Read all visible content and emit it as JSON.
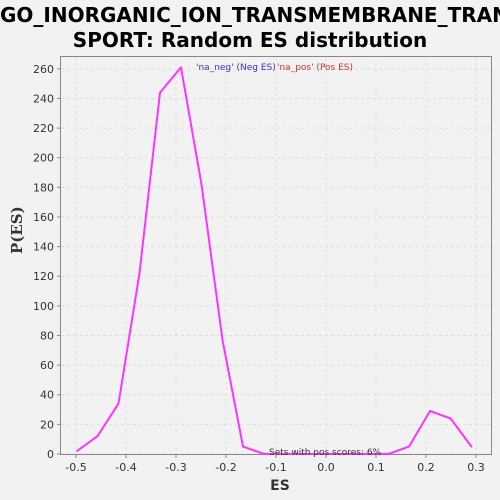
{
  "chart_data": {
    "type": "line",
    "title": "GO_INORGANIC_ION_TRANSMEMBRANE_TRAN\nSPORT: Random ES distribution",
    "xlabel": "ES",
    "ylabel": "P(ES)",
    "xlim": [
      -0.53,
      0.33
    ],
    "ylim": [
      0,
      268
    ],
    "x_ticks": [
      "-0.5",
      "-0.4",
      "-0.3",
      "-0.2",
      "-0.1",
      "0.0",
      "0.1",
      "0.2",
      "0.3"
    ],
    "x_tick_values": [
      -0.5,
      -0.4,
      -0.3,
      -0.2,
      -0.1,
      0.0,
      0.1,
      0.2,
      0.3
    ],
    "y_ticks": [
      "0",
      "20",
      "40",
      "60",
      "80",
      "100",
      "120",
      "140",
      "160",
      "180",
      "200",
      "220",
      "240",
      "260"
    ],
    "y_tick_values": [
      0,
      20,
      40,
      60,
      80,
      100,
      120,
      140,
      160,
      180,
      200,
      220,
      240,
      260
    ],
    "grid": true,
    "legend": [
      {
        "label": "'na_neg' (Neg ES)",
        "color": "#3333cc"
      },
      {
        "label": "'na_pos' (Pos ES)",
        "color": "#cc3333"
      }
    ],
    "annotation": "Sets with pos scores: 6%",
    "series": [
      {
        "color": "#ff33ff",
        "x": [
          -0.498,
          -0.457,
          -0.415,
          -0.373,
          -0.332,
          -0.29,
          -0.249,
          -0.207,
          -0.166,
          -0.124,
          -0.083,
          -0.041,
          0.0,
          0.042,
          0.083,
          0.125,
          0.166,
          0.208,
          0.249,
          0.291
        ],
        "y": [
          2,
          12,
          34,
          122,
          244,
          261,
          182,
          77,
          5,
          0,
          0,
          0,
          0,
          0,
          0,
          0,
          5,
          29,
          24,
          5
        ]
      }
    ]
  }
}
